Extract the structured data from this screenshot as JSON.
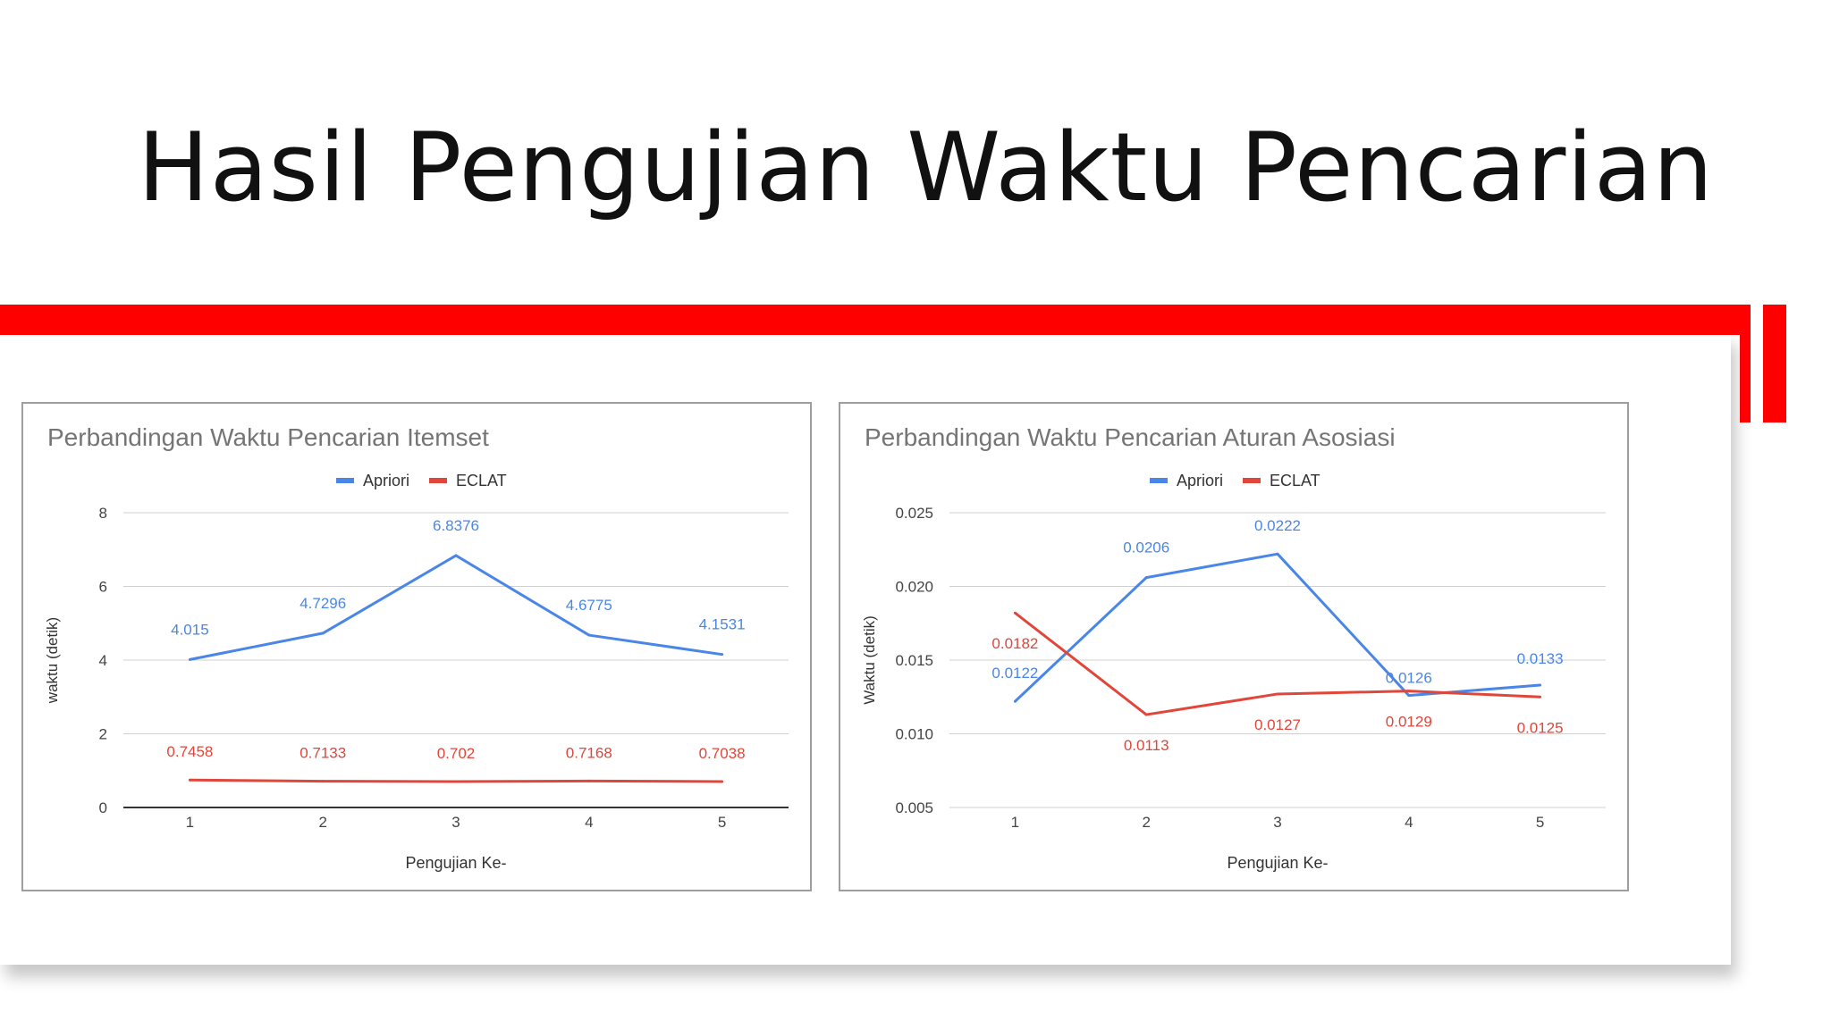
{
  "slide": {
    "title": "Hasil Pengujian Waktu Pencarian"
  },
  "colors": {
    "accent_red": "#ff0000",
    "apriori": "#4a86e8",
    "eclat": "#e0463a"
  },
  "chart_data": [
    {
      "type": "line",
      "title": "Perbandingan Waktu Pencarian Itemset",
      "xlabel": "Pengujian Ke-",
      "ylabel": "waktu (detik)",
      "categories": [
        "1",
        "2",
        "3",
        "4",
        "5"
      ],
      "ylim": [
        0,
        8
      ],
      "yticks": [
        "0",
        "2",
        "4",
        "6",
        "8"
      ],
      "grid": true,
      "legend": "top",
      "series": [
        {
          "name": "Apriori",
          "color": "#4a86e8",
          "values": [
            4.015,
            4.7296,
            6.8376,
            4.6775,
            4.1531
          ],
          "labels": [
            "4.015",
            "4.7296",
            "6.8376",
            "4.6775",
            "4.1531"
          ]
        },
        {
          "name": "ECLAT",
          "color": "#e0463a",
          "values": [
            0.7458,
            0.7133,
            0.702,
            0.7168,
            0.7038
          ],
          "labels": [
            "0.7458",
            "0.7133",
            "0.702",
            "0.7168",
            "0.7038"
          ]
        }
      ]
    },
    {
      "type": "line",
      "title": "Perbandingan Waktu Pencarian Aturan Asosiasi",
      "xlabel": "Pengujian Ke-",
      "ylabel": "Waktu (detik)",
      "categories": [
        "1",
        "2",
        "3",
        "4",
        "5"
      ],
      "ylim": [
        0.005,
        0.025
      ],
      "yticks": [
        "0.005",
        "0.010",
        "0.015",
        "0.020",
        "0.025"
      ],
      "grid": true,
      "legend": "top",
      "series": [
        {
          "name": "Apriori",
          "color": "#4a86e8",
          "values": [
            0.0122,
            0.0206,
            0.0222,
            0.0126,
            0.0133
          ],
          "labels": [
            "0.0122",
            "0.0206",
            "0.0222",
            "0.0126",
            "0.0133"
          ]
        },
        {
          "name": "ECLAT",
          "color": "#e0463a",
          "values": [
            0.0182,
            0.0113,
            0.0127,
            0.0129,
            0.0125
          ],
          "labels": [
            "0.0182",
            "0.0113",
            "0.0127",
            "0.0129",
            "0.0125"
          ]
        }
      ]
    }
  ]
}
